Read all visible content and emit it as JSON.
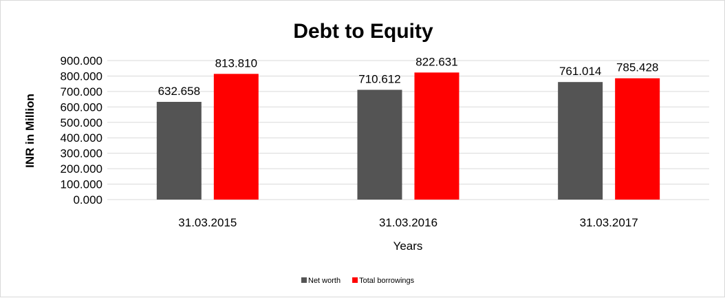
{
  "chart_data": {
    "type": "bar",
    "title": "Debt to Equity",
    "xlabel": "Years",
    "ylabel": "INR in Million",
    "categories": [
      "31.03.2015",
      "31.03.2016",
      "31.03.2017"
    ],
    "series": [
      {
        "name": "Net worth",
        "color": "#545454",
        "values": [
          632.658,
          710.612,
          761.014
        ],
        "labels": [
          "632.658",
          "710.612",
          "761.014"
        ]
      },
      {
        "name": "Total borrowings",
        "color": "#ff0000",
        "values": [
          813.81,
          822.631,
          785.428
        ],
        "labels": [
          "813.810",
          "822.631",
          "785.428"
        ]
      }
    ],
    "ylim": [
      0,
      900
    ],
    "yticks": [
      "0.000",
      "100.000",
      "200.000",
      "300.000",
      "400.000",
      "500.000",
      "600.000",
      "700.000",
      "800.000",
      "900.000"
    ],
    "grid": true,
    "legend": "bottom",
    "gridColor": "#d9d9d9"
  }
}
